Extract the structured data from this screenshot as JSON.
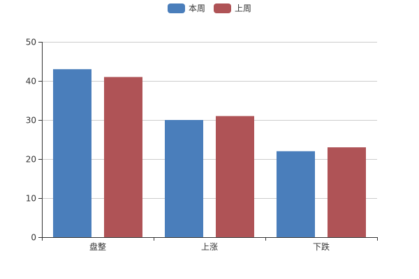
{
  "chart_data": {
    "type": "bar",
    "categories": [
      "盘整",
      "上涨",
      "下跌"
    ],
    "series": [
      {
        "name": "本周",
        "values": [
          43,
          30,
          22
        ],
        "color": "#4a7ebb"
      },
      {
        "name": "上周",
        "values": [
          41,
          31,
          23
        ],
        "color": "#af5356"
      }
    ],
    "ylim": [
      0,
      50
    ],
    "yticks": [
      0,
      10,
      20,
      30,
      40,
      50
    ],
    "grid": true,
    "legend": "top-center",
    "title": "",
    "xlabel": "",
    "ylabel": ""
  }
}
